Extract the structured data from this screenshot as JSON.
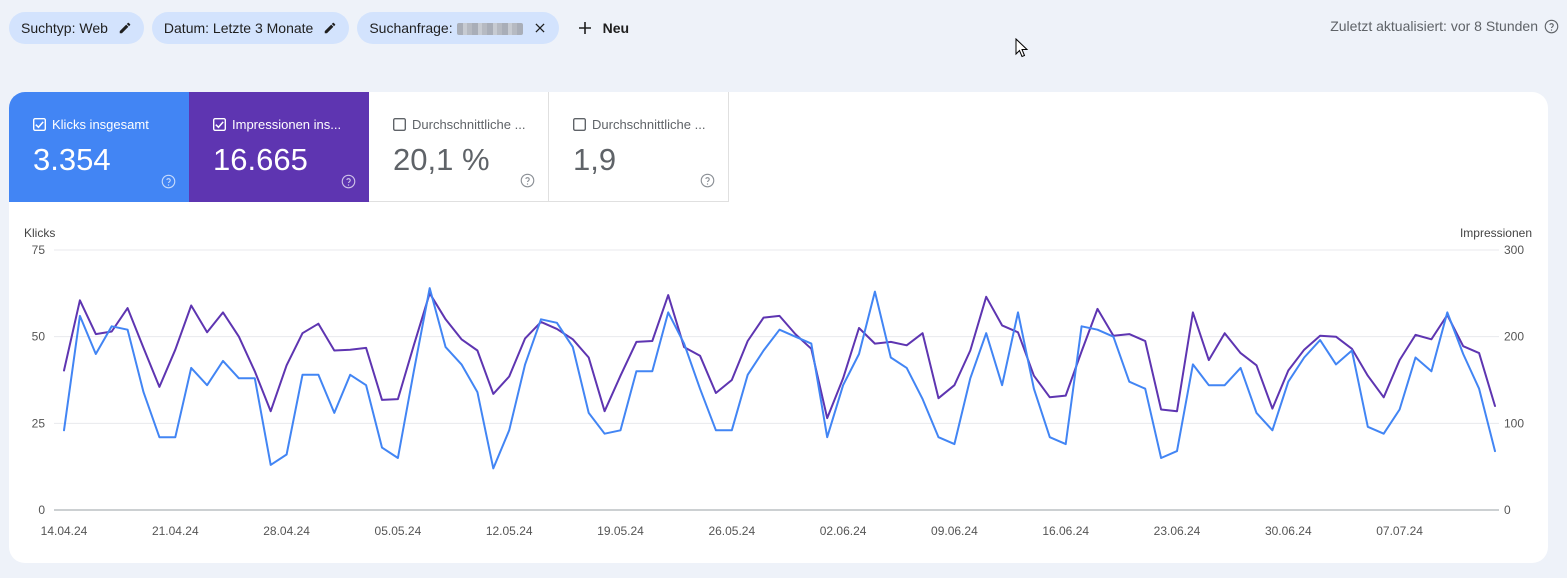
{
  "filters": {
    "search_type": "Suchtyp: Web",
    "date": "Datum: Letzte 3 Monate",
    "query_label": "Suchanfrage:",
    "new_label": "Neu"
  },
  "last_updated": "Zuletzt aktualisiert: vor 8 Stunden",
  "metrics": [
    {
      "label": "Klicks insgesamt",
      "value": "3.354",
      "checked": true,
      "color": "#4285f4"
    },
    {
      "label": "Impressionen ins...",
      "value": "16.665",
      "checked": true,
      "color": "#5e35b1"
    },
    {
      "label": "Durchschnittliche ...",
      "value": "20,1 %",
      "checked": false
    },
    {
      "label": "Durchschnittliche ...",
      "value": "1,9",
      "checked": false
    }
  ],
  "chart_data": {
    "type": "line",
    "left_axis_title": "Klicks",
    "right_axis_title": "Impressionen",
    "left_ticks": [
      "0",
      "25",
      "50",
      "75"
    ],
    "right_ticks": [
      "0",
      "100",
      "200",
      "300"
    ],
    "left_range": [
      0,
      75
    ],
    "right_range": [
      0,
      300
    ],
    "x_labels": [
      "14.04.24",
      "21.04.24",
      "28.04.24",
      "05.05.24",
      "12.05.24",
      "19.05.24",
      "26.05.24",
      "02.06.24",
      "09.06.24",
      "16.06.24",
      "23.06.24",
      "30.06.24",
      "07.07.24"
    ],
    "x_start": "2024-04-14",
    "x_end": "2024-07-13",
    "grid": true,
    "series": [
      {
        "name": "Klicks",
        "axis": "left",
        "color": "#4285f4",
        "values": [
          23,
          56,
          45,
          53,
          52,
          34,
          21,
          21,
          41,
          36,
          43,
          38,
          38,
          13,
          16,
          39,
          39,
          28,
          39,
          36,
          18,
          15,
          40,
          64,
          47,
          42,
          34,
          12,
          23,
          42,
          55,
          54,
          47,
          28,
          22,
          23,
          40,
          40,
          57,
          48,
          35,
          23,
          23,
          39,
          46,
          52,
          50,
          48,
          21,
          36,
          45,
          63,
          44,
          41,
          32,
          21,
          19,
          38,
          51,
          36,
          57,
          35,
          21,
          19,
          53,
          52,
          50,
          37,
          35,
          15,
          17,
          42,
          36,
          36,
          41,
          28,
          23,
          37,
          44,
          49,
          42,
          46,
          24,
          22,
          29,
          44,
          40,
          57,
          45,
          35,
          17
        ]
      },
      {
        "name": "Impressionen",
        "axis": "right",
        "color": "#5e35b1",
        "values": [
          161,
          242,
          203,
          206,
          233,
          187,
          142,
          185,
          236,
          205,
          228,
          200,
          160,
          114,
          167,
          204,
          215,
          184,
          185,
          187,
          127,
          128,
          190,
          250,
          220,
          197,
          184,
          134,
          154,
          198,
          217,
          209,
          197,
          176,
          114,
          155,
          194,
          195,
          248,
          188,
          178,
          135,
          150,
          195,
          222,
          224,
          203,
          186,
          106,
          152,
          210,
          192,
          194,
          190,
          204,
          129,
          144,
          184,
          246,
          213,
          205,
          155,
          130,
          132,
          183,
          232,
          201,
          203,
          195,
          116,
          114,
          228,
          173,
          204,
          181,
          167,
          117,
          161,
          185,
          201,
          200,
          186,
          155,
          130,
          173,
          202,
          197,
          225,
          189,
          181,
          120
        ]
      }
    ]
  }
}
